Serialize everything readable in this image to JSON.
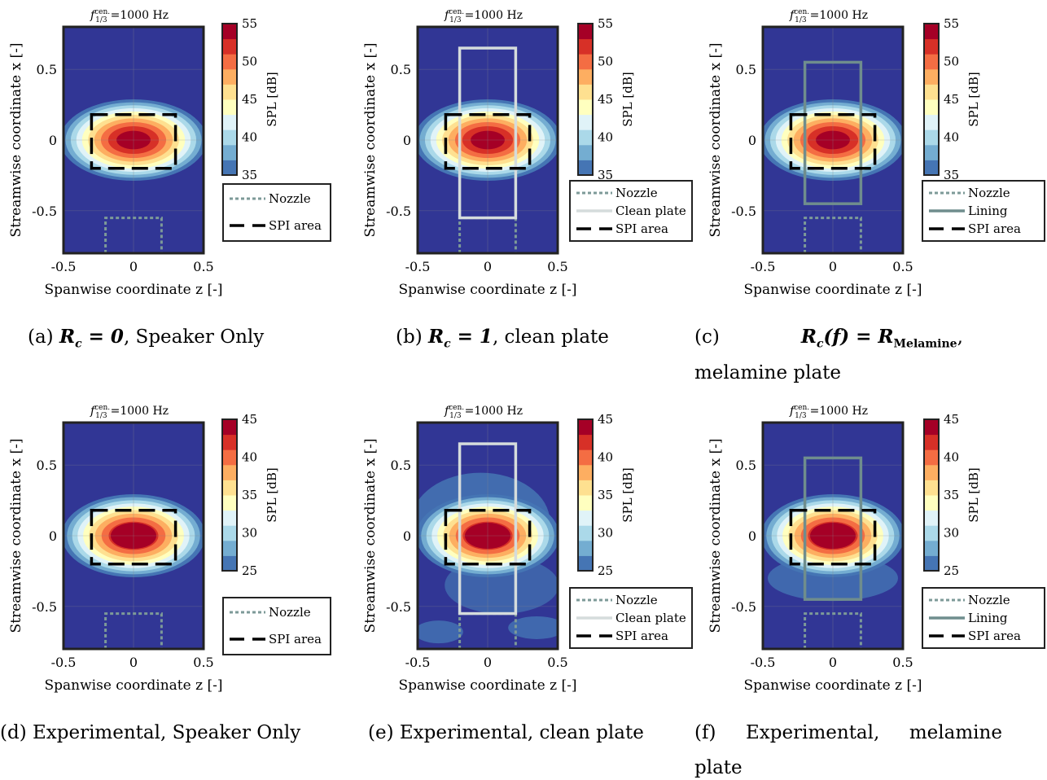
{
  "figure": {
    "freq_label": "=1000 Hz",
    "freq_symbol": "f",
    "freq_sup": "cen.",
    "freq_sub": "1/3",
    "xlabel": "Spanwise coordinate z [-]",
    "ylabel": "Streamwise coordinate x [-]",
    "colorbar_label": "SPL [dB]",
    "xticks": [
      -0.5,
      0,
      0.5
    ],
    "yticks": [
      0.5,
      0,
      -0.5
    ],
    "xlim": [
      -0.5,
      0.5
    ],
    "ylim": [
      -0.8,
      0.8
    ]
  },
  "legend_labels": {
    "nozzle": "Nozzle",
    "spi": "SPI area",
    "clean": "Clean plate",
    "lining": "Lining"
  },
  "colors": {
    "background": "#313695",
    "nozzle": "#7d9a98",
    "clean_plate": "#d5dcdc",
    "lining": "#6f8d8d"
  },
  "captions": {
    "a": {
      "prefix": "(a) ",
      "bold": "R",
      "sub": "c",
      "rest_bold": " = 0",
      "suffix": ", Speaker Only"
    },
    "b": {
      "prefix": "(b) ",
      "bold": "R",
      "sub": "c",
      "rest_bold": " = 1",
      "suffix": ", clean plate"
    },
    "c": {
      "prefix": "(c)",
      "bold": "R",
      "sub": "c",
      "rest_bold": "(f) = R",
      "sub2": "Melamine",
      "suffix": ",",
      "line2": "melamine plate"
    },
    "d": {
      "text": "(d) Experimental, Speaker Only"
    },
    "e": {
      "text": "(e) Experimental, clean plate"
    },
    "f": {
      "text": "(f)     Experimental,     melamine",
      "line2": "plate"
    }
  },
  "chart_data": [
    {
      "id": "a",
      "type": "heatmap",
      "colorbar_ticks": [
        35,
        40,
        45,
        50,
        55
      ],
      "clim": [
        35,
        55
      ],
      "overlays": [
        "nozzle",
        "spi"
      ],
      "legend": [
        "Nozzle",
        "SPI area"
      ],
      "nozzle": {
        "z": [
          -0.2,
          0.2
        ],
        "x": [
          -0.8,
          -0.55
        ]
      },
      "spi_area": {
        "z": [
          -0.3,
          0.3
        ],
        "x": [
          -0.2,
          0.18
        ]
      }
    },
    {
      "id": "b",
      "type": "heatmap",
      "colorbar_ticks": [
        35,
        40,
        45,
        50,
        55
      ],
      "clim": [
        35,
        55
      ],
      "overlays": [
        "nozzle",
        "clean",
        "spi"
      ],
      "legend": [
        "Nozzle",
        "Clean plate",
        "SPI area"
      ],
      "nozzle": {
        "z": [
          -0.2,
          0.2
        ],
        "x": [
          -0.8,
          -0.55
        ]
      },
      "plate": {
        "z": [
          -0.2,
          0.2
        ],
        "x": [
          -0.55,
          0.65
        ]
      },
      "spi_area": {
        "z": [
          -0.3,
          0.3
        ],
        "x": [
          -0.2,
          0.18
        ]
      }
    },
    {
      "id": "c",
      "type": "heatmap",
      "colorbar_ticks": [
        35,
        40,
        45,
        50,
        55
      ],
      "clim": [
        35,
        55
      ],
      "overlays": [
        "nozzle",
        "lining",
        "spi"
      ],
      "legend": [
        "Nozzle",
        "Lining",
        "SPI area"
      ],
      "nozzle": {
        "z": [
          -0.2,
          0.2
        ],
        "x": [
          -0.8,
          -0.55
        ]
      },
      "plate": {
        "z": [
          -0.2,
          0.2
        ],
        "x": [
          -0.45,
          0.55
        ]
      },
      "spi_area": {
        "z": [
          -0.3,
          0.3
        ],
        "x": [
          -0.2,
          0.18
        ]
      }
    },
    {
      "id": "d",
      "type": "heatmap",
      "colorbar_ticks": [
        25,
        30,
        35,
        40,
        45
      ],
      "clim": [
        25,
        45
      ],
      "overlays": [
        "nozzle",
        "spi"
      ],
      "legend": [
        "Nozzle",
        "SPI area"
      ],
      "nozzle": {
        "z": [
          -0.2,
          0.2
        ],
        "x": [
          -0.8,
          -0.55
        ]
      },
      "spi_area": {
        "z": [
          -0.3,
          0.3
        ],
        "x": [
          -0.2,
          0.18
        ]
      }
    },
    {
      "id": "e",
      "type": "heatmap",
      "colorbar_ticks": [
        25,
        30,
        35,
        40,
        45
      ],
      "clim": [
        25,
        45
      ],
      "overlays": [
        "nozzle",
        "clean",
        "spi"
      ],
      "legend": [
        "Nozzle",
        "Clean plate",
        "SPI area"
      ],
      "nozzle": {
        "z": [
          -0.2,
          0.2
        ],
        "x": [
          -0.8,
          -0.55
        ]
      },
      "plate": {
        "z": [
          -0.2,
          0.2
        ],
        "x": [
          -0.55,
          0.65
        ]
      },
      "spi_area": {
        "z": [
          -0.3,
          0.3
        ],
        "x": [
          -0.2,
          0.18
        ]
      }
    },
    {
      "id": "f",
      "type": "heatmap",
      "colorbar_ticks": [
        25,
        30,
        35,
        40,
        45
      ],
      "clim": [
        25,
        45
      ],
      "overlays": [
        "nozzle",
        "lining",
        "spi"
      ],
      "legend": [
        "Nozzle",
        "Lining",
        "SPI area"
      ],
      "nozzle": {
        "z": [
          -0.2,
          0.2
        ],
        "x": [
          -0.8,
          -0.55
        ]
      },
      "plate": {
        "z": [
          -0.2,
          0.2
        ],
        "x": [
          -0.45,
          0.55
        ]
      },
      "spi_area": {
        "z": [
          -0.3,
          0.3
        ],
        "x": [
          -0.2,
          0.18
        ]
      }
    }
  ]
}
